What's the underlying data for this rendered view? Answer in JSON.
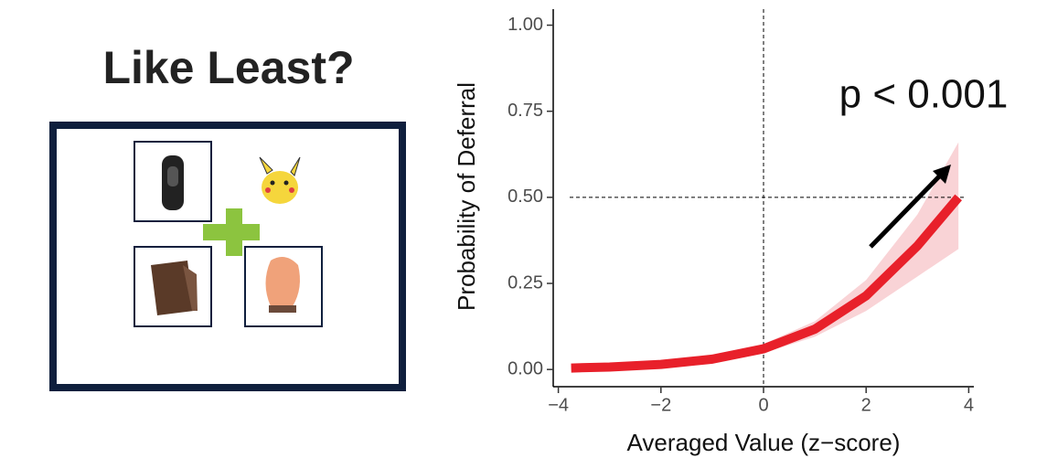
{
  "panel": {
    "title": "Like Least?"
  },
  "chart_data": {
    "type": "line",
    "y_label": "Probability of Deferral",
    "x_label": "Averaged Value (z−score)",
    "annotation": "p < 0.001",
    "x": [
      -3.75,
      -3,
      -2,
      -1,
      0,
      1,
      2,
      3,
      3.8
    ],
    "values": [
      0.0042,
      0.0072,
      0.0148,
      0.03,
      0.06,
      0.117,
      0.214,
      0.359,
      0.5
    ],
    "band_lower": [
      0.001,
      0.003,
      0.008,
      0.021,
      0.048,
      0.095,
      0.17,
      0.27,
      0.35
    ],
    "band_upper": [
      0.013,
      0.017,
      0.026,
      0.042,
      0.074,
      0.14,
      0.26,
      0.45,
      0.66
    ],
    "color": "#e8202a",
    "band_color": "#f9d3d6",
    "hline": 0.5,
    "vline": 0,
    "xlim": [
      -4.1,
      4.1
    ],
    "xticks": [
      {
        "value": -4,
        "label": "−4"
      },
      {
        "value": -2,
        "label": "−2"
      },
      0,
      2,
      4
    ],
    "ylim": [
      -0.05,
      1.02
    ],
    "yticks": [
      {
        "value": 0,
        "label": "0.00"
      },
      0.25,
      {
        "value": 0.5,
        "label": "0.50"
      },
      0.75,
      {
        "value": 1,
        "label": "1.00"
      }
    ]
  }
}
